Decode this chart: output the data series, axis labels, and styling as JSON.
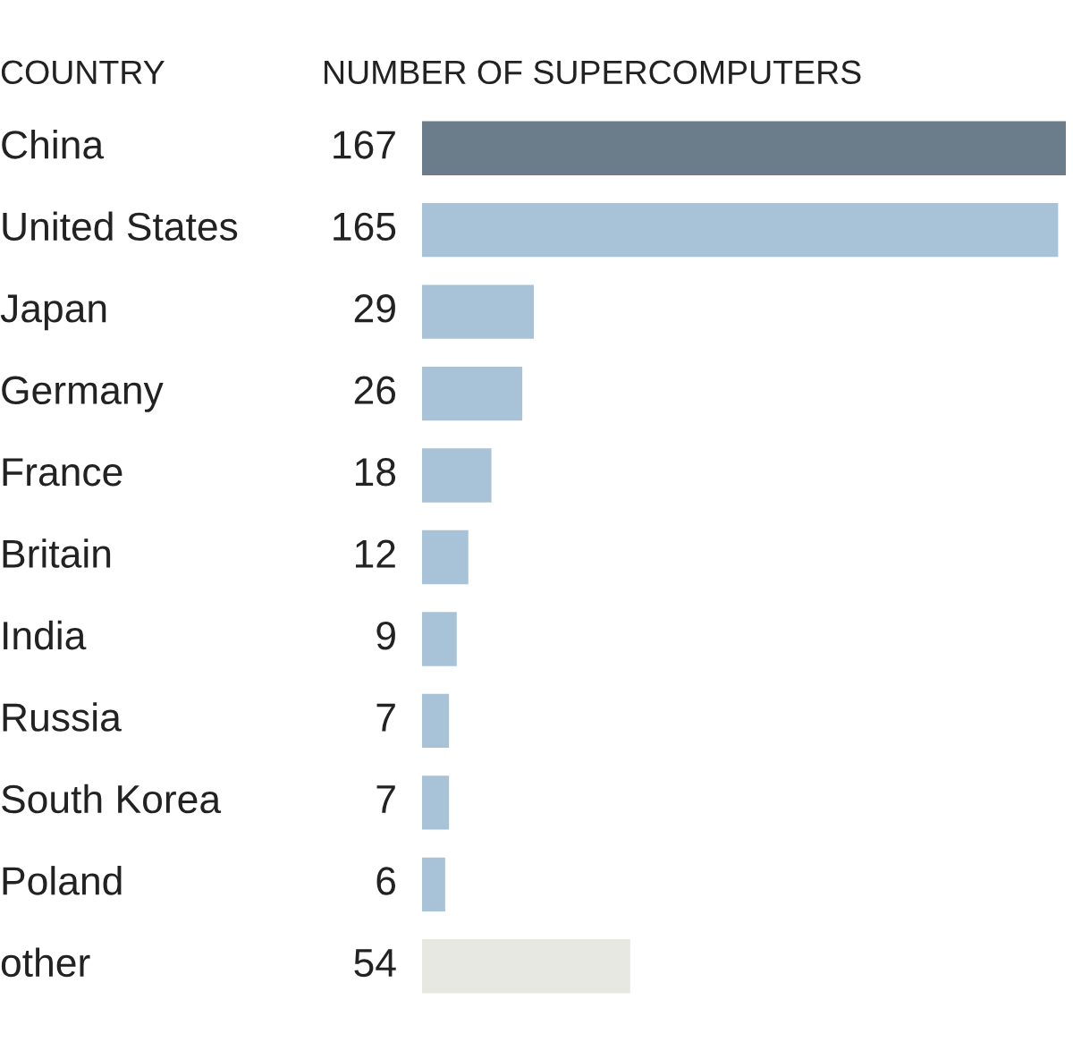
{
  "chart_data": {
    "type": "bar",
    "orientation": "horizontal",
    "ylabel": "COUNTRY",
    "xlabel": "NUMBER OF SUPERCOMPUTERS",
    "categories": [
      "China",
      "United States",
      "Japan",
      "Germany",
      "France",
      "Britain",
      "India",
      "Russia",
      "South Korea",
      "Poland",
      "other"
    ],
    "values": [
      167,
      165,
      29,
      26,
      18,
      12,
      9,
      7,
      7,
      6,
      54
    ],
    "colors": [
      "#6b7c8b",
      "#a8c3d7",
      "#a8c3d7",
      "#a8c3d7",
      "#a8c3d7",
      "#a8c3d7",
      "#a8c3d7",
      "#a8c3d7",
      "#a8c3d7",
      "#a8c3d7",
      "#e8e8e3"
    ],
    "data_labels": true
  }
}
